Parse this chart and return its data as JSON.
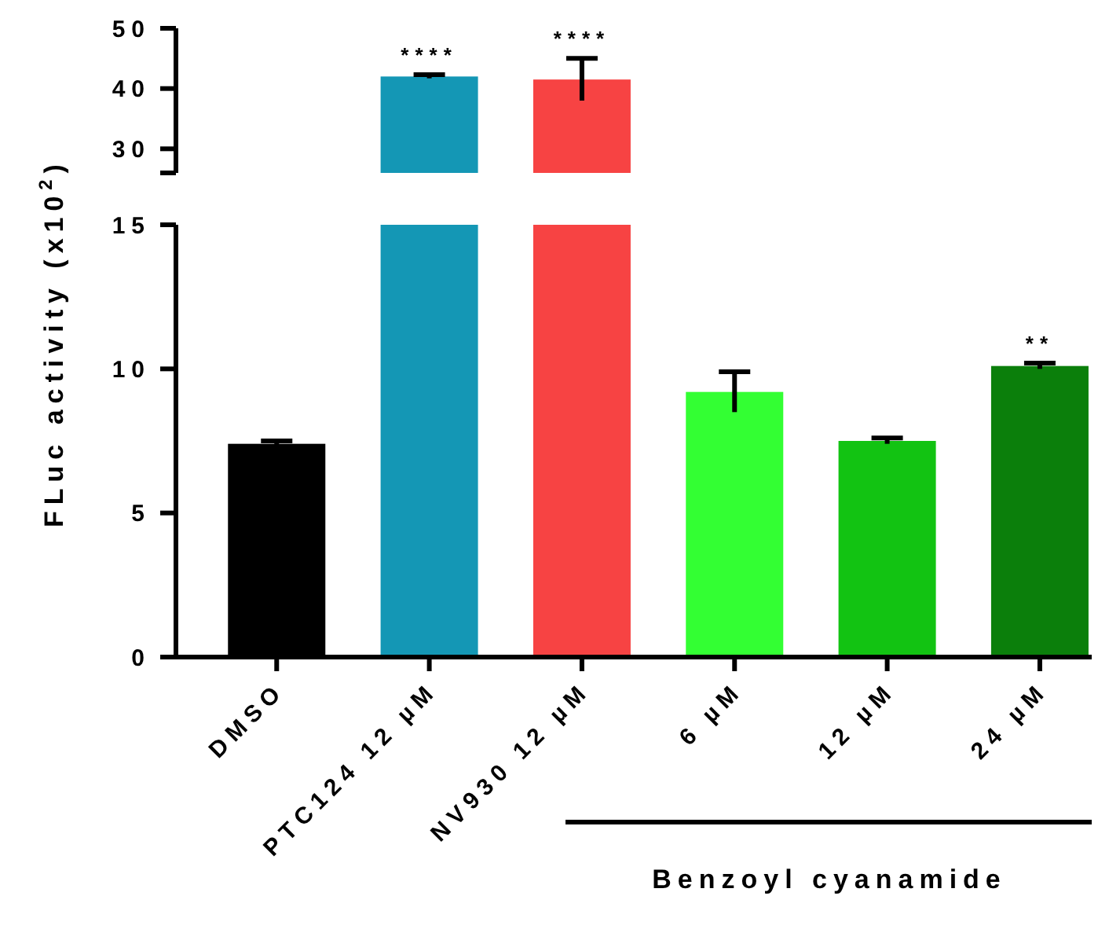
{
  "chart_data": [
    {
      "type": "bar",
      "categories": [
        "DMSO",
        "PTC124 12 µM",
        "NV930 12 µM",
        "6 µM",
        "12 µM",
        "24 µM"
      ],
      "values": [
        null,
        42,
        41.5,
        null,
        null,
        null
      ],
      "errors": [
        null,
        0.3,
        3.5,
        null,
        null,
        null
      ],
      "colors": [
        null,
        "#1497b5",
        "#f74343",
        null,
        null,
        null
      ],
      "ylim": [
        26,
        50
      ],
      "yticks": [
        30,
        40,
        50
      ],
      "tick_labels": "y",
      "annotations": [
        {
          "text": "****",
          "x": "PTC124 12 µM",
          "y": 42.3
        },
        {
          "text": "****",
          "x": "NV930 12 µM",
          "y": 45
        }
      ]
    },
    {
      "type": "bar",
      "categories": [
        "DMSO",
        "PTC124 12 µM",
        "NV930 12 µM",
        "6 µM",
        "12 µM",
        "24 µM"
      ],
      "values": [
        7.4,
        15,
        15,
        9.2,
        7.5,
        10.1
      ],
      "errors": [
        0.1,
        null,
        null,
        0.7,
        0.1,
        0.1
      ],
      "colors": [
        "#000000",
        "#1497b5",
        "#f74343",
        "#33ff33",
        "#12c312",
        "#0b7f0b"
      ],
      "ylim": [
        0,
        15
      ],
      "yticks": [
        0,
        5,
        10,
        15
      ],
      "ylabel": "FLuc activity (x10$^{2}$)",
      "annotations": [
        {
          "text": "**",
          "x": "24 µM",
          "y": 10.2
        },
        "Benzoyl cyanamide"
      ]
    }
  ]
}
